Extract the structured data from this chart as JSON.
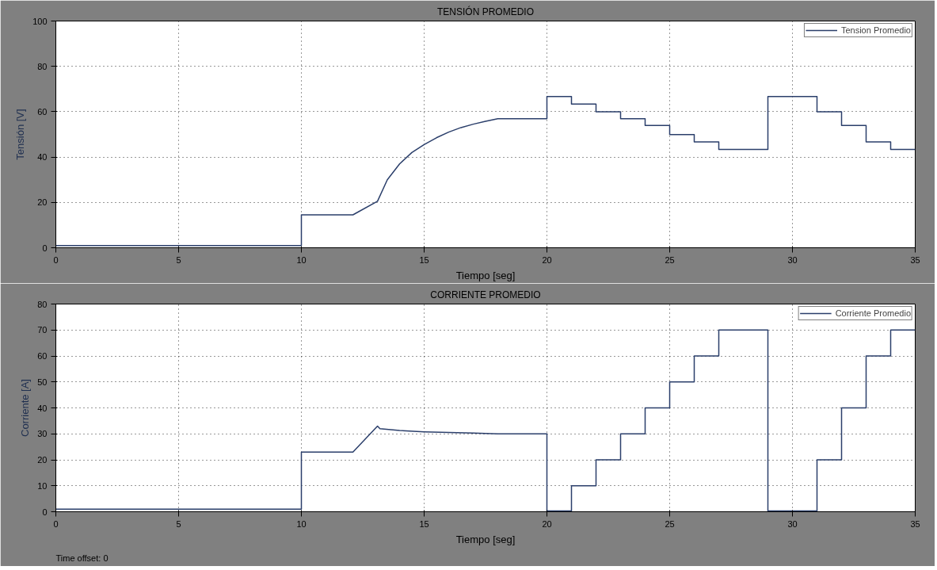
{
  "chart_data": [
    {
      "type": "line",
      "title": "TENSIÓN PROMEDIO",
      "xlabel": "Tiempo [seg]",
      "ylabel": "Tensión [V]",
      "xlim": [
        0,
        35
      ],
      "xticks": [
        0,
        5,
        10,
        15,
        20,
        25,
        30,
        35
      ],
      "ylim": [
        0,
        100
      ],
      "yticks": [
        0,
        20,
        40,
        60,
        80,
        100
      ],
      "grid": true,
      "legend": "top right",
      "line_style": "solid",
      "series": [
        {
          "name": "Tension Promedio",
          "color": "#2b3f6b",
          "x": [
            0,
            10,
            10,
            12.1,
            13.1,
            13.5,
            14,
            14.5,
            15,
            15.5,
            16,
            16.5,
            17,
            17.5,
            18,
            20,
            20,
            21,
            21,
            22,
            22,
            23,
            23,
            24,
            24,
            25,
            25,
            26,
            26,
            27,
            27,
            29,
            29,
            31,
            31,
            32,
            32,
            33,
            33,
            34,
            34,
            35
          ],
          "values": [
            1,
            1,
            14.5,
            14.5,
            20.5,
            30,
            37,
            42,
            45.5,
            48.5,
            51,
            53,
            54.5,
            55.8,
            56.9,
            56.9,
            66.7,
            66.7,
            63.4,
            63.4,
            60,
            60,
            56.9,
            56.9,
            53.9,
            53.9,
            49.9,
            49.9,
            46.7,
            46.7,
            43.4,
            43.4,
            66.7,
            66.7,
            60,
            60,
            53.9,
            53.9,
            46.7,
            46.7,
            43.4,
            43.4
          ]
        }
      ]
    },
    {
      "type": "line",
      "title": "CORRIENTE PROMEDIO",
      "xlabel": "Tiempo [seg]",
      "ylabel": "Corriente [A]",
      "xlim": [
        0,
        35
      ],
      "xticks": [
        0,
        5,
        10,
        15,
        20,
        25,
        30,
        35
      ],
      "ylim": [
        0,
        80
      ],
      "yticks": [
        0,
        10,
        20,
        30,
        40,
        50,
        60,
        70,
        80
      ],
      "grid": true,
      "legend": "top right",
      "line_style": "solid",
      "annotations": [
        "Time offset:  0"
      ],
      "series": [
        {
          "name": "Corriente Promedio",
          "color": "#2b3f6b",
          "x": [
            0,
            10,
            10,
            12.1,
            13.1,
            13.2,
            14,
            15,
            16,
            17,
            18,
            20,
            20,
            21,
            21,
            22,
            22,
            23,
            23,
            24,
            24,
            25,
            25,
            26,
            26,
            27,
            27,
            29,
            29,
            31,
            31,
            32,
            32,
            33,
            33,
            34,
            34,
            35
          ],
          "values": [
            1,
            1,
            23,
            23,
            33,
            32,
            31.3,
            30.8,
            30.5,
            30.3,
            30,
            30,
            0.3,
            0.3,
            10,
            10,
            20,
            20,
            30,
            30,
            40,
            40,
            50,
            50,
            60,
            60,
            70,
            70,
            0.3,
            0.3,
            20,
            20,
            40,
            40,
            60,
            60,
            70,
            70
          ]
        }
      ]
    }
  ]
}
